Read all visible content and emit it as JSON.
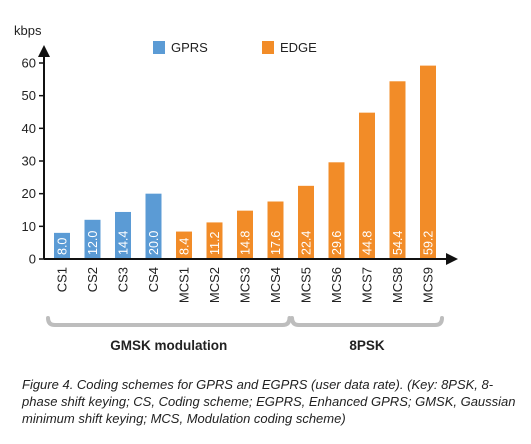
{
  "chart_data": {
    "type": "bar",
    "ylabel": "kbps",
    "ylim": [
      0,
      62
    ],
    "yticks": [
      0,
      10,
      20,
      30,
      40,
      50,
      60
    ],
    "grid": false,
    "legend_position": "top",
    "categories": [
      "CS1",
      "CS2",
      "CS3",
      "CS4",
      "MCS1",
      "MCS2",
      "MCS3",
      "MCS4",
      "MCS5",
      "MCS6",
      "MCS7",
      "MCS8",
      "MCS9"
    ],
    "series": [
      {
        "name": "GPRS",
        "color": "#5b9bd5",
        "values": [
          8.0,
          12.0,
          14.4,
          20.0,
          null,
          null,
          null,
          null,
          null,
          null,
          null,
          null,
          null
        ]
      },
      {
        "name": "EDGE",
        "color": "#f28c28",
        "values": [
          null,
          null,
          null,
          null,
          8.4,
          11.2,
          14.8,
          17.6,
          22.4,
          29.6,
          44.8,
          54.4,
          59.2
        ]
      }
    ],
    "value_labels": [
      "8.0",
      "12.0",
      "14.4",
      "20.0",
      "8.4",
      "11.2",
      "14.8",
      "17.6",
      "22.4",
      "29.6",
      "44.8",
      "54.4",
      "59.2"
    ],
    "groups": [
      {
        "label": "GMSK modulation",
        "first": 0,
        "last": 7
      },
      {
        "label": "8PSK",
        "first": 8,
        "last": 12
      }
    ]
  },
  "caption": "Figure 4. Coding schemes for GPRS and EGPRS (user data rate). (Key: 8PSK, 8-phase shift keying; CS, Coding scheme; EGPRS, Enhanced GPRS; GMSK, Gaussian minimum shift keying; MCS, Modulation coding scheme)"
}
